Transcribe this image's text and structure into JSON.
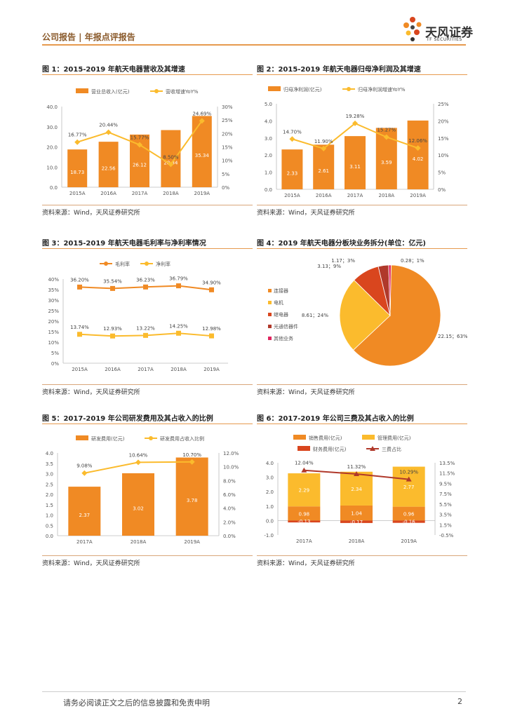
{
  "header": {
    "left": "公司报告 | 年报点评报告",
    "brand": "天风证券",
    "brand_sub": "TF SECURITIES"
  },
  "footer": {
    "text": "请务必阅读正文之后的信息披露和免责申明",
    "page": "2"
  },
  "colors": {
    "orange": "#f08a24",
    "yellow": "#fbbb2d",
    "red": "#d9461e",
    "darkred": "#b0392b"
  },
  "charts": [
    {
      "id": "fig1",
      "title": "图 1：2015-2019 年航天电器营收及其增速",
      "source": "资料来源：Wind，天风证券研究所",
      "chart_data": {
        "type": "bar+line",
        "categories": [
          "2015A",
          "2016A",
          "2017A",
          "2018A",
          "2019A"
        ],
        "series": [
          {
            "name": "营业总收入(亿元)",
            "type": "bar",
            "values": [
              18.73,
              22.56,
              26.12,
              28.34,
              35.34
            ],
            "labels": [
              "18.73",
              "22.56",
              "26.12",
              "28.34",
              "35.34"
            ]
          },
          {
            "name": "营收增速YoY%",
            "type": "line",
            "axis": "right",
            "values": [
              16.77,
              20.44,
              15.77,
              8.5,
              24.69
            ],
            "labels": [
              "16.77%",
              "20.44%",
              "15.77%",
              "8.50%",
              "24.69%"
            ]
          }
        ],
        "yticks": [
          "0.0",
          "10.0",
          "20.0",
          "30.0",
          "40.0"
        ],
        "y2ticks": [
          "0%",
          "5%",
          "10%",
          "15%",
          "20%",
          "25%",
          "30%"
        ],
        "ylim": [
          0,
          40
        ],
        "y2lim": [
          0,
          30
        ]
      }
    },
    {
      "id": "fig2",
      "title": "图 2：2015-2019 年航天电器归母净利润及其增速",
      "source": "资料来源：Wind，天风证券研究所",
      "chart_data": {
        "type": "bar+line",
        "categories": [
          "2015A",
          "2016A",
          "2017A",
          "2018A",
          "2019A"
        ],
        "series": [
          {
            "name": "归母净利润(亿元)",
            "type": "bar",
            "values": [
              2.33,
              2.61,
              3.11,
              3.59,
              4.02
            ],
            "labels": [
              "2.33",
              "2.61",
              "3.11",
              "3.59",
              "4.02"
            ]
          },
          {
            "name": "归母净利润增速YoY%",
            "type": "line",
            "axis": "right",
            "values": [
              14.7,
              11.9,
              19.28,
              15.27,
              12.06
            ],
            "labels": [
              "14.70%",
              "11.90%",
              "19.28%",
              "15.27%",
              "12.06%"
            ]
          }
        ],
        "yticks": [
          "0.0",
          "1.0",
          "2.0",
          "3.0",
          "4.0",
          "5.0"
        ],
        "y2ticks": [
          "0%",
          "5%",
          "10%",
          "15%",
          "20%",
          "25%"
        ],
        "ylim": [
          0,
          5
        ],
        "y2lim": [
          0,
          25
        ]
      }
    },
    {
      "id": "fig3",
      "title": "图 3：2015-2019 年航天电器毛利率与净利率情况",
      "source": "资料来源：Wind，天风证券研究所",
      "chart_data": {
        "type": "line",
        "categories": [
          "2015A",
          "2016A",
          "2017A",
          "2018A",
          "2019A"
        ],
        "series": [
          {
            "name": "毛利率",
            "values": [
              36.2,
              35.54,
              36.23,
              36.79,
              34.9
            ],
            "labels": [
              "36.20%",
              "35.54%",
              "36.23%",
              "36.79%",
              "34.90%"
            ]
          },
          {
            "name": "净利率",
            "values": [
              13.74,
              12.93,
              13.22,
              14.25,
              12.98
            ],
            "labels": [
              "13.74%",
              "12.93%",
              "13.22%",
              "14.25%",
              "12.98%"
            ]
          }
        ],
        "yticks": [
          "0%",
          "5%",
          "10%",
          "15%",
          "20%",
          "25%",
          "30%",
          "35%",
          "40%"
        ],
        "ylim": [
          0,
          40
        ]
      }
    },
    {
      "id": "fig4",
      "title": "图 4：2019 年航天电器分板块业务拆分(单位：亿元)",
      "source": "资料来源：Wind，天风证券研究所",
      "chart_data": {
        "type": "pie",
        "slices": [
          {
            "name": "连接器",
            "value": 22.15,
            "label": "22.15；63%"
          },
          {
            "name": "电机",
            "value": 8.61,
            "label": "8.61；24%"
          },
          {
            "name": "继电器",
            "value": 3.13,
            "label": "3.13；9%"
          },
          {
            "name": "光通信器件",
            "value": 1.17,
            "label": "1.17；3%"
          },
          {
            "name": "其他业务",
            "value": 0.28,
            "label": "0.28；1%"
          }
        ]
      }
    },
    {
      "id": "fig5",
      "title": "图 5：2017-2019 年公司研发费用及其占收入的比例",
      "source": "资料来源：Wind，天风证券研究所",
      "chart_data": {
        "type": "bar+line",
        "categories": [
          "2017A",
          "2018A",
          "2019A"
        ],
        "series": [
          {
            "name": "研发费用(亿元)",
            "type": "bar",
            "values": [
              2.37,
              3.02,
              3.78
            ],
            "labels": [
              "2.37",
              "3.02",
              "3.78"
            ]
          },
          {
            "name": "研发费用占收入比例",
            "type": "line",
            "axis": "right",
            "values": [
              9.08,
              10.64,
              10.7
            ],
            "labels": [
              "9.08%",
              "10.64%",
              "10.70%"
            ]
          }
        ],
        "yticks": [
          "0.0",
          "0.5",
          "1.0",
          "1.5",
          "2.0",
          "2.5",
          "3.0",
          "3.5",
          "4.0"
        ],
        "y2ticks": [
          "0.0%",
          "2.0%",
          "4.0%",
          "6.0%",
          "8.0%",
          "10.0%",
          "12.0%"
        ],
        "ylim": [
          0,
          4
        ],
        "y2lim": [
          0,
          12
        ]
      }
    },
    {
      "id": "fig6",
      "title": "图 6：2017-2019 年公司三费及其占收入的比例",
      "source": "资料来源：Wind，天风证券研究所",
      "chart_data": {
        "type": "stacked-bar+line",
        "categories": [
          "2017A",
          "2018A",
          "2019A"
        ],
        "series": [
          {
            "name": "销售费用(亿元)",
            "type": "bar",
            "values": [
              0.98,
              1.04,
              0.96
            ],
            "labels": [
              "0.98",
              "1.04",
              "0.96"
            ]
          },
          {
            "name": "管理费用(亿元)",
            "type": "bar",
            "values": [
              2.29,
              2.34,
              2.77
            ],
            "labels": [
              "2.29",
              "2.34",
              "2.77"
            ]
          },
          {
            "name": "财务费用(亿元)",
            "type": "bar",
            "values": [
              -0.13,
              -0.17,
              -0.16
            ],
            "labels": [
              "-0.13",
              "-0.17",
              "-0.16"
            ]
          },
          {
            "name": "三费占比",
            "type": "line",
            "axis": "right",
            "values": [
              12.04,
              11.32,
              10.29
            ],
            "labels": [
              "12.04%",
              "11.32%",
              "10.29%"
            ]
          }
        ],
        "yticks": [
          "-1.0",
          "0.0",
          "1.0",
          "2.0",
          "3.0",
          "4.0"
        ],
        "y2ticks": [
          "-0.5%",
          "1.5%",
          "3.5%",
          "5.5%",
          "7.5%",
          "9.5%",
          "11.5%",
          "13.5%"
        ],
        "ylim": [
          -1,
          4
        ],
        "y2lim": [
          -0.5,
          13.5
        ]
      }
    }
  ]
}
